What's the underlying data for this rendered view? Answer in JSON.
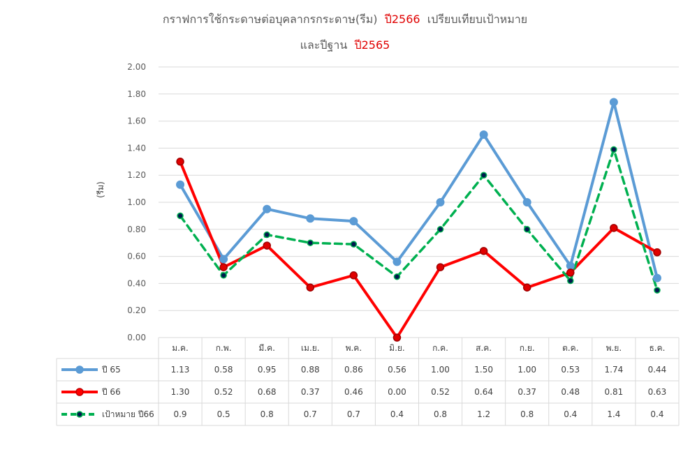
{
  "chart_data": {
    "type": "line",
    "title": {
      "line1_main": "กราฟการใช้กระดาษต่อบุคลากรกระดาษ(รีม)",
      "line1_year": "ปี2566",
      "line1_rest": "เปรียบเทียบเป้าหมาย",
      "line2_main": "และปีฐาน",
      "line2_year": "ปี2565"
    },
    "ylabel": "(รีม)",
    "ylim": [
      0,
      2.0
    ],
    "yticks": [
      "0.00",
      "0.20",
      "0.40",
      "0.60",
      "0.80",
      "1.00",
      "1.20",
      "1.40",
      "1.60",
      "1.80",
      "2.00"
    ],
    "grid": true,
    "legend": "data-table",
    "categories": [
      "ม.ค.",
      "ก.พ.",
      "มี.ค.",
      "เม.ย.",
      "พ.ค.",
      "มิ.ย.",
      "ก.ค.",
      "ส.ค.",
      "ก.ย.",
      "ต.ค.",
      "พ.ย.",
      "ธ.ค."
    ],
    "series": [
      {
        "name": "ปี 65",
        "color": "#5b9bd5",
        "style": "solid",
        "values": [
          1.13,
          0.58,
          0.95,
          0.88,
          0.86,
          0.56,
          1.0,
          1.5,
          1.0,
          0.53,
          1.74,
          0.44
        ],
        "labels": [
          "1.13",
          "0.58",
          "0.95",
          "0.88",
          "0.86",
          "0.56",
          "1.00",
          "1.50",
          "1.00",
          "0.53",
          "1.74",
          "0.44"
        ]
      },
      {
        "name": "ปี 66",
        "color": "#ff0000",
        "style": "solid",
        "values": [
          1.3,
          0.52,
          0.68,
          0.37,
          0.46,
          0.0,
          0.52,
          0.64,
          0.37,
          0.48,
          0.81,
          0.63
        ],
        "labels": [
          "1.30",
          "0.52",
          "0.68",
          "0.37",
          "0.46",
          "0.00",
          "0.52",
          "0.64",
          "0.37",
          "0.48",
          "0.81",
          "0.63"
        ]
      },
      {
        "name": "เป้าหมาย ปี66",
        "color": "#00b050",
        "style": "dashed",
        "values": [
          0.9,
          0.46,
          0.76,
          0.7,
          0.69,
          0.45,
          0.8,
          1.2,
          0.8,
          0.42,
          1.39,
          0.35
        ],
        "labels": [
          "0.9",
          "0.5",
          "0.8",
          "0.7",
          "0.7",
          "0.4",
          "0.8",
          "1.2",
          "0.8",
          "0.4",
          "1.4",
          "0.4"
        ]
      }
    ]
  }
}
